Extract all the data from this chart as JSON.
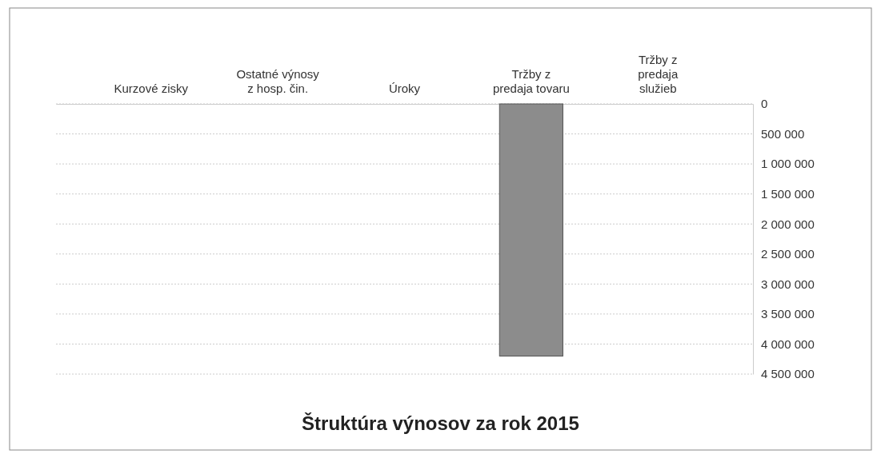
{
  "chart_data": {
    "type": "bar",
    "title": "Štruktúra výnosov za rok 2015",
    "categories": [
      "Kurzové zisky",
      "Ostatné výnosy z hosp. čin.",
      "Úroky",
      "Tržby z predaja tovaru",
      "Tržby z predaja služieb"
    ],
    "values": [
      0,
      0,
      0,
      4200000,
      0
    ],
    "color": "#8c8c8c",
    "ylim": [
      4500000,
      0
    ],
    "yticks": [
      0,
      {
        "value": 500000,
        "label": "500 000"
      },
      {
        "value": 1000000,
        "label": "1 000 000"
      },
      {
        "value": 1500000,
        "label": "1 500 000"
      },
      {
        "value": 2000000,
        "label": "2 000 000"
      },
      {
        "value": 2500000,
        "label": "2 500 000"
      },
      {
        "value": 3000000,
        "label": "3 000 000"
      },
      {
        "value": 3500000,
        "label": "3 500 000"
      },
      {
        "value": 4000000,
        "label": "4 000 000"
      },
      {
        "value": 4500000,
        "label": "4 500 000"
      }
    ],
    "grid": "y"
  }
}
